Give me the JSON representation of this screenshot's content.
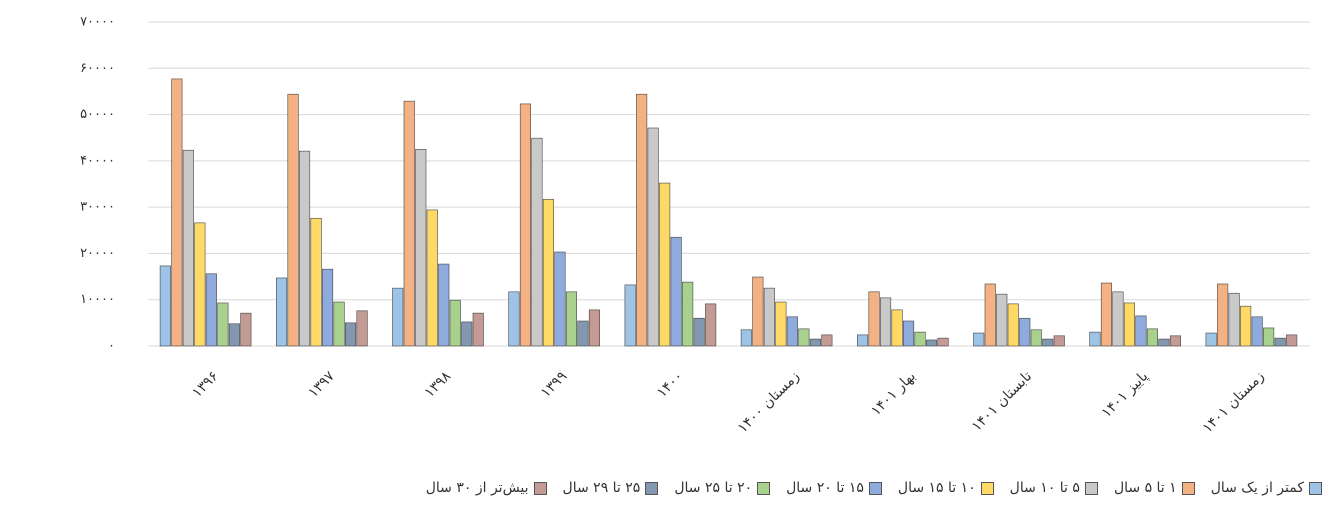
{
  "chart_data": {
    "type": "bar",
    "categories": [
      "۱۳۹۶",
      "۱۳۹۷",
      "۱۳۹۸",
      "۱۳۹۹",
      "۱۴۰۰",
      "زمستان ۱۴۰۰",
      "بهار ۱۴۰۱",
      "تابستان ۱۴۰۱",
      "پاییز ۱۴۰۱",
      "زمستان ۱۴۰۱"
    ],
    "series": [
      {
        "name": "کمتر از یک سال",
        "color": "#9dc3e6",
        "values": [
          17300,
          14700,
          12500,
          11700,
          13200,
          3500,
          2400,
          2800,
          3000,
          2800
        ]
      },
      {
        "name": "۱ تا ۵ سال",
        "color": "#f4b183",
        "values": [
          57700,
          54400,
          52900,
          52300,
          54400,
          14900,
          11700,
          13400,
          13600,
          13400
        ]
      },
      {
        "name": "۵ تا ۱۰ سال",
        "color": "#c9c9c9",
        "values": [
          42300,
          42100,
          42500,
          44900,
          47100,
          12500,
          10400,
          11200,
          11700,
          11400
        ]
      },
      {
        "name": "۱۰ تا ۱۵ سال",
        "color": "#ffd966",
        "values": [
          26600,
          27600,
          29400,
          31700,
          35200,
          9500,
          7800,
          9100,
          9300,
          8600
        ]
      },
      {
        "name": "۱۵ تا ۲۰ سال",
        "color": "#8faadc",
        "values": [
          15600,
          16600,
          17700,
          20300,
          23500,
          6300,
          5400,
          6000,
          6500,
          6300
        ]
      },
      {
        "name": "۲۰ تا ۲۵ سال",
        "color": "#a9d18e",
        "values": [
          9300,
          9500,
          9900,
          11700,
          13800,
          3700,
          3000,
          3500,
          3700,
          3900
        ]
      },
      {
        "name": "۲۵ تا ۲۹ سال",
        "color": "#8497b0",
        "values": [
          4800,
          5000,
          5200,
          5400,
          6000,
          1500,
          1300,
          1500,
          1500,
          1700
        ]
      },
      {
        "name": "بیش‌تر از ۳۰ سال",
        "color": "#c49a94",
        "values": [
          7100,
          7600,
          7100,
          7800,
          9100,
          2400,
          1700,
          2200,
          2200,
          2400
        ]
      }
    ],
    "ylim": [
      0,
      70000
    ],
    "yticks": [
      {
        "value": 0,
        "label": "۰"
      },
      {
        "value": 10000,
        "label": "۱۰۰۰۰"
      },
      {
        "value": 20000,
        "label": "۲۰۰۰۰"
      },
      {
        "value": 30000,
        "label": "۳۰۰۰۰"
      },
      {
        "value": 40000,
        "label": "۴۰۰۰۰"
      },
      {
        "value": 50000,
        "label": "۵۰۰۰۰"
      },
      {
        "value": 60000,
        "label": "۶۰۰۰۰"
      },
      {
        "value": 70000,
        "label": "۷۰۰۰۰"
      }
    ],
    "grid": true,
    "legend": "bottom"
  }
}
